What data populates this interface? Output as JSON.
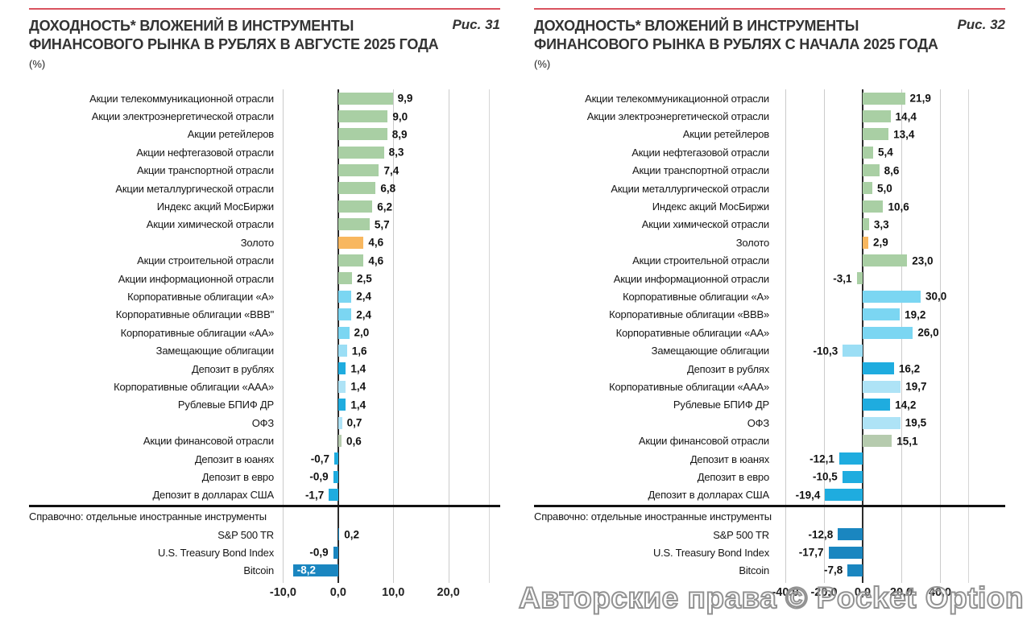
{
  "watermark": "Авторские права © Pocket Option",
  "colors": {
    "rule": "#d9535f",
    "title": "#333333",
    "axis": "#2b2b2b",
    "grid": "#cbcbcb",
    "watermark_stroke": "#929292",
    "palette": {
      "green": "#a9cfa4",
      "green_muted": "#b6cbae",
      "gold": "#f8b75f",
      "cyan": "#7bd6f2",
      "cyan_light": "#9bdef5",
      "pale": "#aee3f6",
      "blue": "#1facdf",
      "dark": "#1a86c0"
    }
  },
  "chart_data": [
    {
      "type": "bar",
      "figure_label": "Рис. 31",
      "title_line1": "ДОХОДНОСТЬ* ВЛОЖЕНИЙ В ИНСТРУМЕНТЫ",
      "title_line2": "ФИНАНСОВОГО РЫНКА В РУБЛЯХ В АВГУСТЕ 2025 ГОДА",
      "unit": "(%)",
      "axis": {
        "min": -10.5,
        "max": 27.5,
        "ticks": [
          {
            "value": -10,
            "label": "-10,0"
          },
          {
            "value": 0,
            "label": "0,0"
          },
          {
            "value": 10,
            "label": "10,0"
          },
          {
            "value": 20,
            "label": "20,0"
          }
        ]
      },
      "rows": [
        {
          "label": "Акции телекоммуникационной отрасли",
          "value": 9.9,
          "value_label": "9,9",
          "color": "green"
        },
        {
          "label": "Акции электроэнергетической отрасли",
          "value": 9.0,
          "value_label": "9,0",
          "color": "green"
        },
        {
          "label": "Акции ретейлеров",
          "value": 8.9,
          "value_label": "8,9",
          "color": "green"
        },
        {
          "label": "Акции нефтегазовой отрасли",
          "value": 8.3,
          "value_label": "8,3",
          "color": "green"
        },
        {
          "label": "Акции транспортной отрасли",
          "value": 7.4,
          "value_label": "7,4",
          "color": "green"
        },
        {
          "label": "Акции металлургической отрасли",
          "value": 6.8,
          "value_label": "6,8",
          "color": "green"
        },
        {
          "label": "Индекс акций МосБиржи",
          "value": 6.2,
          "value_label": "6,2",
          "color": "green"
        },
        {
          "label": "Акции химической отрасли",
          "value": 5.7,
          "value_label": "5,7",
          "color": "green"
        },
        {
          "label": "Золото",
          "value": 4.6,
          "value_label": "4,6",
          "color": "gold"
        },
        {
          "label": "Акции строительной отрасли",
          "value": 4.6,
          "value_label": "4,6",
          "color": "green"
        },
        {
          "label": "Акции информационной отрасли",
          "value": 2.5,
          "value_label": "2,5",
          "color": "green"
        },
        {
          "label": "Корпоративные облигации «А»",
          "value": 2.4,
          "value_label": "2,4",
          "color": "cyan"
        },
        {
          "label": "Корпоративные облигации «ВВВ\"",
          "value": 2.4,
          "value_label": "2,4",
          "color": "cyan"
        },
        {
          "label": "Корпоративные облигации «АА»",
          "value": 2.0,
          "value_label": "2,0",
          "color": "cyan"
        },
        {
          "label": "Замещающие облигации",
          "value": 1.6,
          "value_label": "1,6",
          "color": "cyan_light"
        },
        {
          "label": "Депозит в рублях",
          "value": 1.4,
          "value_label": "1,4",
          "color": "blue"
        },
        {
          "label": "Корпоративные облигации «ААА»",
          "value": 1.4,
          "value_label": "1,4",
          "color": "pale"
        },
        {
          "label": "Рублевые БПИФ ДР",
          "value": 1.4,
          "value_label": "1,4",
          "color": "blue"
        },
        {
          "label": "ОФЗ",
          "value": 0.7,
          "value_label": "0,7",
          "color": "pale"
        },
        {
          "label": "Акции финансовой отрасли",
          "value": 0.6,
          "value_label": "0,6",
          "color": "green_muted"
        },
        {
          "label": "Депозит в юанях",
          "value": -0.7,
          "value_label": "-0,7",
          "color": "blue"
        },
        {
          "label": "Депозит в евро",
          "value": -0.9,
          "value_label": "-0,9",
          "color": "blue"
        },
        {
          "label": "Депозит в долларах США",
          "value": -1.7,
          "value_label": "-1,7",
          "color": "blue"
        }
      ],
      "note_label": "Справочно: отдельные иностранные инструменты",
      "note_rows": [
        {
          "label": "S&P 500 TR",
          "value": 0.2,
          "value_label": "0,2",
          "color": "dark"
        },
        {
          "label": "U.S. Treasury Bond Index",
          "value": -0.9,
          "value_label": "-0,9",
          "color": "dark"
        },
        {
          "label": "Bitcoin",
          "value": -8.2,
          "value_label": "-8,2",
          "color": "dark",
          "inside": true
        }
      ]
    },
    {
      "type": "bar",
      "figure_label": "Рис. 32",
      "title_line1": "ДОХОДНОСТЬ* ВЛОЖЕНИЙ В ИНСТРУМЕНТЫ",
      "title_line2": "ФИНАНСОВОГО РЫНКА В РУБЛЯХ С НАЧАЛА 2025 ГОДА",
      "unit": "(%)",
      "axis": {
        "min": -45,
        "max": 55,
        "ticks": [
          {
            "value": -40,
            "label": "-40,0"
          },
          {
            "value": -20,
            "label": "-20,0"
          },
          {
            "value": 0,
            "label": "0,0"
          },
          {
            "value": 20,
            "label": "20,0"
          },
          {
            "value": 40,
            "label": "40,0"
          }
        ]
      },
      "rows": [
        {
          "label": "Акции телекоммуникационной отрасли",
          "value": 21.9,
          "value_label": "21,9",
          "color": "green"
        },
        {
          "label": "Акции электроэнергетической отрасли",
          "value": 14.4,
          "value_label": "14,4",
          "color": "green"
        },
        {
          "label": "Акции ретейлеров",
          "value": 13.4,
          "value_label": "13,4",
          "color": "green"
        },
        {
          "label": "Акции нефтегазовой отрасли",
          "value": 5.4,
          "value_label": "5,4",
          "color": "green"
        },
        {
          "label": "Акции транспортной отрасли",
          "value": 8.6,
          "value_label": "8,6",
          "color": "green"
        },
        {
          "label": "Акции металлургической отрасли",
          "value": 5.0,
          "value_label": "5,0",
          "color": "green"
        },
        {
          "label": "Индекс акций МосБиржи",
          "value": 10.6,
          "value_label": "10,6",
          "color": "green"
        },
        {
          "label": "Акции химической отрасли",
          "value": 3.3,
          "value_label": "3,3",
          "color": "green"
        },
        {
          "label": "Золото",
          "value": 2.9,
          "value_label": "2,9",
          "color": "gold"
        },
        {
          "label": "Акции строительной отрасли",
          "value": 23.0,
          "value_label": "23,0",
          "color": "green"
        },
        {
          "label": "Акции информационной отрасли",
          "value": -3.1,
          "value_label": "-3,1",
          "color": "green"
        },
        {
          "label": "Корпоративные облигации «А»",
          "value": 30.0,
          "value_label": "30,0",
          "color": "cyan"
        },
        {
          "label": "Корпоративные облигации «ВВВ»",
          "value": 19.2,
          "value_label": "19,2",
          "color": "cyan"
        },
        {
          "label": "Корпоративные облигации «АА»",
          "value": 26.0,
          "value_label": "26,0",
          "color": "cyan"
        },
        {
          "label": "Замещающие облигации",
          "value": -10.3,
          "value_label": "-10,3",
          "color": "cyan_light"
        },
        {
          "label": "Депозит в рублях",
          "value": 16.2,
          "value_label": "16,2",
          "color": "blue"
        },
        {
          "label": "Корпоративные облигации «ААА»",
          "value": 19.7,
          "value_label": "19,7",
          "color": "pale"
        },
        {
          "label": "Рублевые БПИФ ДР",
          "value": 14.2,
          "value_label": "14,2",
          "color": "blue"
        },
        {
          "label": "ОФЗ",
          "value": 19.5,
          "value_label": "19,5",
          "color": "pale"
        },
        {
          "label": "Акции финансовой отрасли",
          "value": 15.1,
          "value_label": "15,1",
          "color": "green_muted"
        },
        {
          "label": "Депозит в юанях",
          "value": -12.1,
          "value_label": "-12,1",
          "color": "blue"
        },
        {
          "label": "Депозит в евро",
          "value": -10.5,
          "value_label": "-10,5",
          "color": "blue"
        },
        {
          "label": "Депозит в долларах США",
          "value": -19.4,
          "value_label": "-19,4",
          "color": "blue"
        }
      ],
      "note_label": "Справочно: отдельные иностранные инструменты",
      "note_rows": [
        {
          "label": "S&P 500 TR",
          "value": -12.8,
          "value_label": "-12,8",
          "color": "dark"
        },
        {
          "label": "U.S. Treasury Bond Index",
          "value": -17.7,
          "value_label": "-17,7",
          "color": "dark"
        },
        {
          "label": "Bitcoin",
          "value": -7.8,
          "value_label": "-7,8",
          "color": "dark"
        }
      ]
    }
  ]
}
